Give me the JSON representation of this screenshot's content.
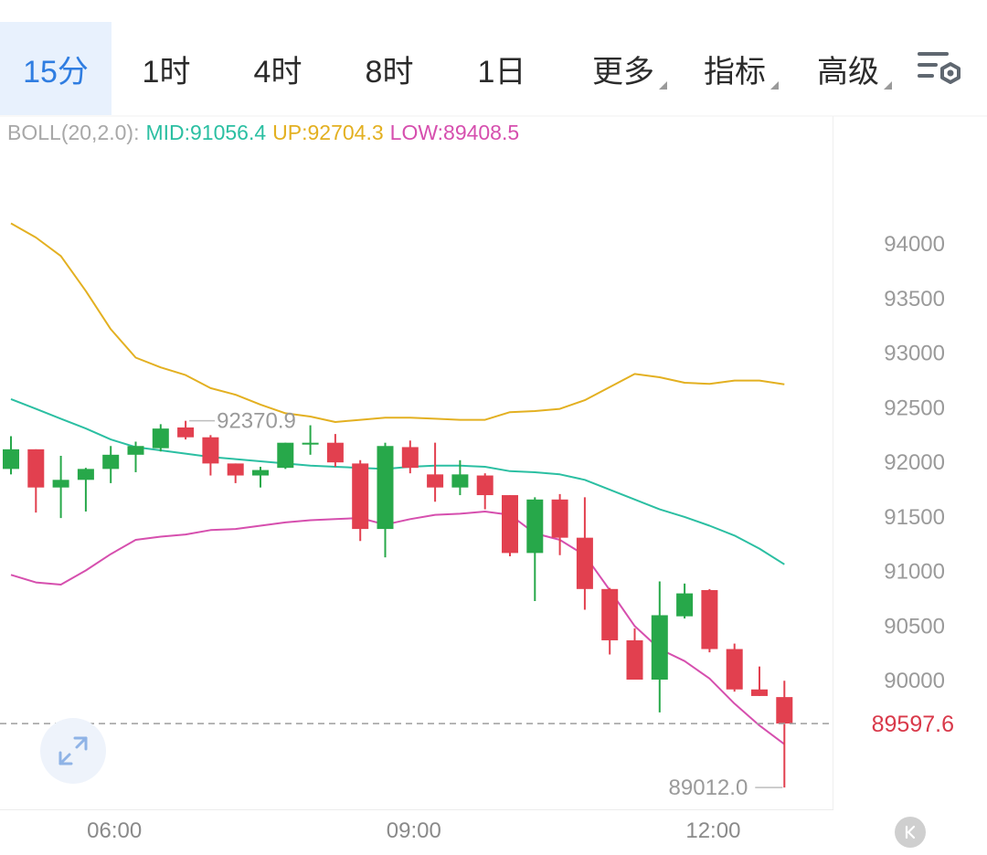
{
  "tabs": [
    {
      "label": "15分",
      "active": true
    },
    {
      "label": "1时",
      "active": false
    },
    {
      "label": "4时",
      "active": false
    },
    {
      "label": "8时",
      "active": false
    },
    {
      "label": "1日",
      "active": false
    },
    {
      "label": "更多",
      "active": false,
      "dropdown": true
    },
    {
      "label": "指标",
      "active": false,
      "dropdown": true
    },
    {
      "label": "高级",
      "active": false,
      "dropdown": true
    }
  ],
  "settings_icon": "chart-settings-icon",
  "indicator": {
    "name": "BOLL(20,2.0):",
    "mid": "MID:91056.4",
    "up": "UP:92704.3",
    "low": "LOW:89408.5"
  },
  "colors": {
    "active_tab": "#2f7de1",
    "mid": "#2bbfa2",
    "up": "#e3b021",
    "low": "#d64fae",
    "bull": "#27a84a",
    "bear": "#e2404f",
    "price_label": "#d9394a"
  },
  "chart_data": {
    "type": "candlestick",
    "ylim": [
      88500,
      94500
    ],
    "yticks": [
      "94000",
      "93500",
      "93000",
      "92500",
      "92000",
      "91500",
      "91000",
      "90500",
      "90000"
    ],
    "xticks": [
      {
        "label": "06:00",
        "index": 4
      },
      {
        "label": "09:00",
        "index": 16
      },
      {
        "label": "12:00",
        "index": 28
      }
    ],
    "current_price": "89597.6",
    "high_marker": {
      "label": "92370.9",
      "index": 7,
      "value": 92370.9
    },
    "low_marker": {
      "label": "89012.0",
      "index": 31,
      "value": 89012.0
    },
    "candles": [
      {
        "o": 91930,
        "h": 92230,
        "l": 91880,
        "c": 92110
      },
      {
        "o": 92110,
        "h": 92110,
        "l": 91530,
        "c": 91760
      },
      {
        "o": 91760,
        "h": 92050,
        "l": 91480,
        "c": 91830
      },
      {
        "o": 91830,
        "h": 91940,
        "l": 91540,
        "c": 91930
      },
      {
        "o": 91930,
        "h": 92140,
        "l": 91800,
        "c": 92060
      },
      {
        "o": 92060,
        "h": 92180,
        "l": 91900,
        "c": 92140
      },
      {
        "o": 92120,
        "h": 92340,
        "l": 92090,
        "c": 92300
      },
      {
        "o": 92310,
        "h": 92371,
        "l": 92200,
        "c": 92220
      },
      {
        "o": 92220,
        "h": 92240,
        "l": 91870,
        "c": 91980
      },
      {
        "o": 91980,
        "h": 91980,
        "l": 91800,
        "c": 91870
      },
      {
        "o": 91870,
        "h": 91950,
        "l": 91760,
        "c": 91920
      },
      {
        "o": 91940,
        "h": 92170,
        "l": 91930,
        "c": 92170
      },
      {
        "o": 92160,
        "h": 92330,
        "l": 92060,
        "c": 92170
      },
      {
        "o": 92170,
        "h": 92250,
        "l": 91950,
        "c": 91990
      },
      {
        "o": 91980,
        "h": 92010,
        "l": 91270,
        "c": 91380
      },
      {
        "o": 91380,
        "h": 92170,
        "l": 91120,
        "c": 92140
      },
      {
        "o": 92130,
        "h": 92190,
        "l": 91890,
        "c": 91940
      },
      {
        "o": 91880,
        "h": 92170,
        "l": 91630,
        "c": 91760
      },
      {
        "o": 91760,
        "h": 92010,
        "l": 91690,
        "c": 91880
      },
      {
        "o": 91870,
        "h": 91890,
        "l": 91560,
        "c": 91690
      },
      {
        "o": 91690,
        "h": 91690,
        "l": 91130,
        "c": 91160
      },
      {
        "o": 91160,
        "h": 91670,
        "l": 90720,
        "c": 91650
      },
      {
        "o": 91650,
        "h": 91700,
        "l": 91140,
        "c": 91300
      },
      {
        "o": 91300,
        "h": 91670,
        "l": 90640,
        "c": 90830
      },
      {
        "o": 90830,
        "h": 90840,
        "l": 90230,
        "c": 90360
      },
      {
        "o": 90360,
        "h": 90470,
        "l": 90000,
        "c": 90000
      },
      {
        "o": 90000,
        "h": 90900,
        "l": 89700,
        "c": 90590
      },
      {
        "o": 90580,
        "h": 90880,
        "l": 90560,
        "c": 90790
      },
      {
        "o": 90820,
        "h": 90830,
        "l": 90250,
        "c": 90280
      },
      {
        "o": 90280,
        "h": 90330,
        "l": 89890,
        "c": 89910
      },
      {
        "o": 89910,
        "h": 90120,
        "l": 89850,
        "c": 89850
      },
      {
        "o": 89840,
        "h": 89990,
        "l": 89012,
        "c": 89597.6
      }
    ],
    "series": [
      {
        "name": "UP",
        "values": [
          94180,
          94050,
          93880,
          93560,
          93210,
          92950,
          92860,
          92790,
          92670,
          92610,
          92520,
          92440,
          92410,
          92360,
          92380,
          92400,
          92400,
          92390,
          92380,
          92380,
          92450,
          92460,
          92480,
          92560,
          92680,
          92800,
          92770,
          92720,
          92710,
          92740,
          92740,
          92704.3
        ]
      },
      {
        "name": "MID",
        "values": [
          92570,
          92480,
          92390,
          92300,
          92200,
          92130,
          92100,
          92070,
          92040,
          92020,
          92000,
          91980,
          91960,
          91950,
          91940,
          91930,
          91950,
          91960,
          91960,
          91950,
          91910,
          91900,
          91880,
          91830,
          91740,
          91650,
          91560,
          91490,
          91410,
          91320,
          91200,
          91056.4
        ]
      },
      {
        "name": "LOW",
        "values": [
          90960,
          90890,
          90870,
          91000,
          91150,
          91280,
          91310,
          91330,
          91370,
          91380,
          91410,
          91440,
          91460,
          91470,
          91480,
          91420,
          91470,
          91510,
          91520,
          91540,
          91510,
          91340,
          91280,
          91140,
          90820,
          90490,
          90280,
          90170,
          90010,
          89780,
          89580,
          89408.5
        ]
      }
    ]
  }
}
